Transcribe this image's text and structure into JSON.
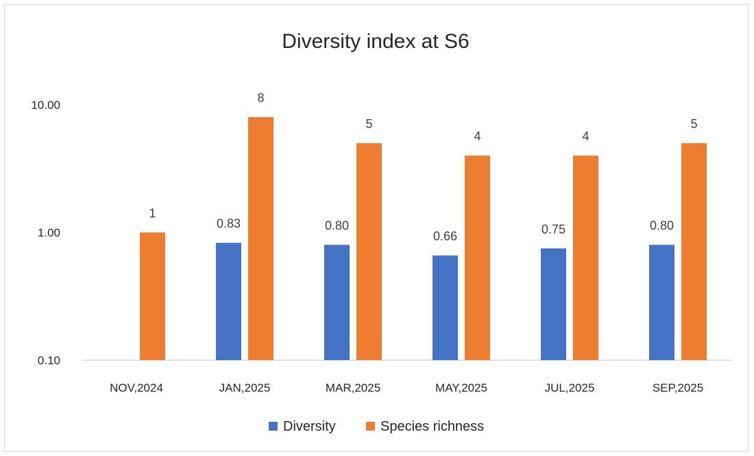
{
  "chart_data": {
    "type": "bar",
    "title": "Diversity index at S6",
    "xlabel": "",
    "ylabel": "",
    "yscale": "log",
    "ylim": [
      0.1,
      10
    ],
    "yticks": [
      "10.00",
      "1.00",
      "0.10"
    ],
    "categories": [
      "NOV,2024",
      "JAN,2025",
      "MAR,2025",
      "MAY,2025",
      "JUL,2025",
      "SEP,2025"
    ],
    "series": [
      {
        "name": "Diversity",
        "color": "#4472C4",
        "values": [
          null,
          0.83,
          0.8,
          0.66,
          0.75,
          0.8
        ],
        "labels": [
          "",
          "0.83",
          "0.80",
          "0.66",
          "0.75",
          "0.80"
        ]
      },
      {
        "name": "Species richness",
        "color": "#ED7D31",
        "values": [
          1,
          8,
          5,
          4,
          4,
          5
        ],
        "labels": [
          "1",
          "8",
          "5",
          "4",
          "4",
          "5"
        ]
      }
    ],
    "legend_position": "bottom",
    "grid": false
  }
}
